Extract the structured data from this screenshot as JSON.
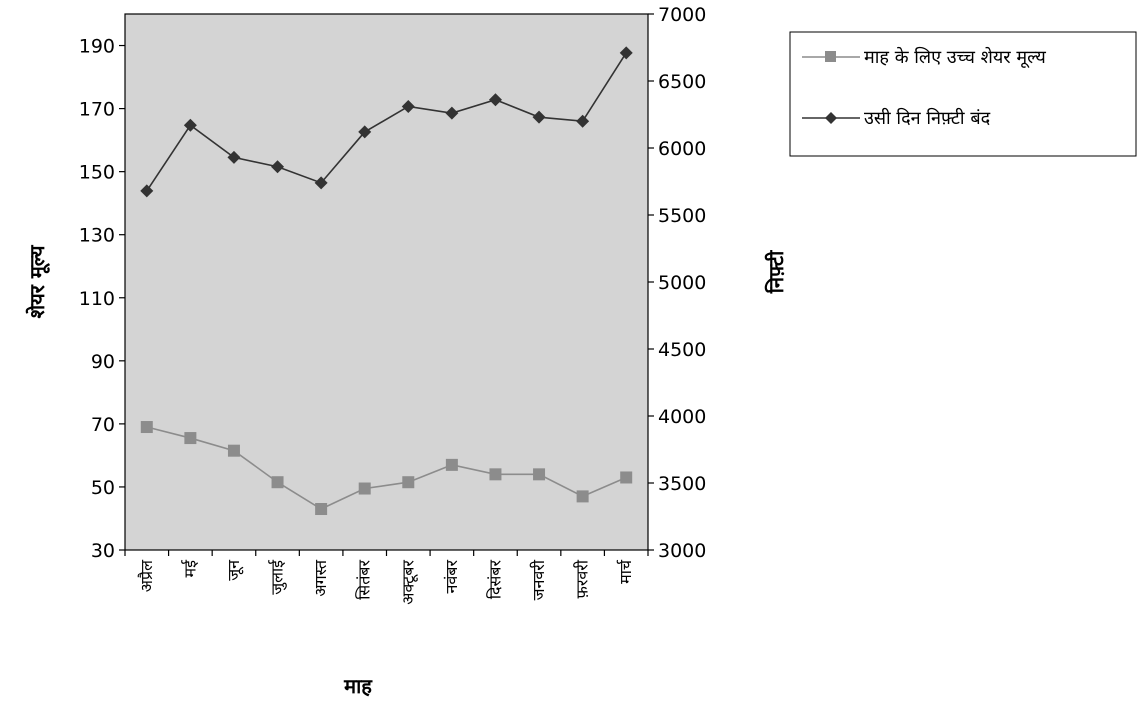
{
  "chart_data": {
    "type": "line",
    "categories": [
      "अप्रैल",
      "मई",
      "जून",
      "जुलाई",
      "अगस्त",
      "सितंबर",
      "अक्टूबर",
      "नवंबर",
      "दिसंबर",
      "जनवरी",
      "फ़रवरी",
      "मार्च"
    ],
    "xlabel": "माह",
    "ylabel": "शेयर मूल्य",
    "y2label": "निफ़्टी",
    "ylim": [
      30,
      200
    ],
    "yticks": [
      30,
      50,
      70,
      90,
      110,
      130,
      150,
      170,
      190
    ],
    "y2lim": [
      3000,
      7000
    ],
    "y2ticks": [
      3000,
      3500,
      4000,
      4500,
      5000,
      5500,
      6000,
      6500,
      7000
    ],
    "plot_background": "#d4d4d4",
    "grid": false,
    "legend_position": "top-right",
    "series": [
      {
        "name": "माह के लिए उच्च शेयर मूल्य",
        "axis": "left",
        "marker": "square",
        "color": "#8c8c8c",
        "values": [
          69,
          65.5,
          61.5,
          51.5,
          43,
          49.5,
          51.5,
          57,
          54,
          54,
          47,
          53
        ]
      },
      {
        "name": "उसी दिन निफ़्टी बंद",
        "axis": "right",
        "marker": "diamond",
        "color": "#333333",
        "values": [
          5680,
          6170,
          5930,
          5860,
          5740,
          6120,
          6310,
          6260,
          6360,
          6230,
          6200,
          6710
        ]
      }
    ]
  }
}
